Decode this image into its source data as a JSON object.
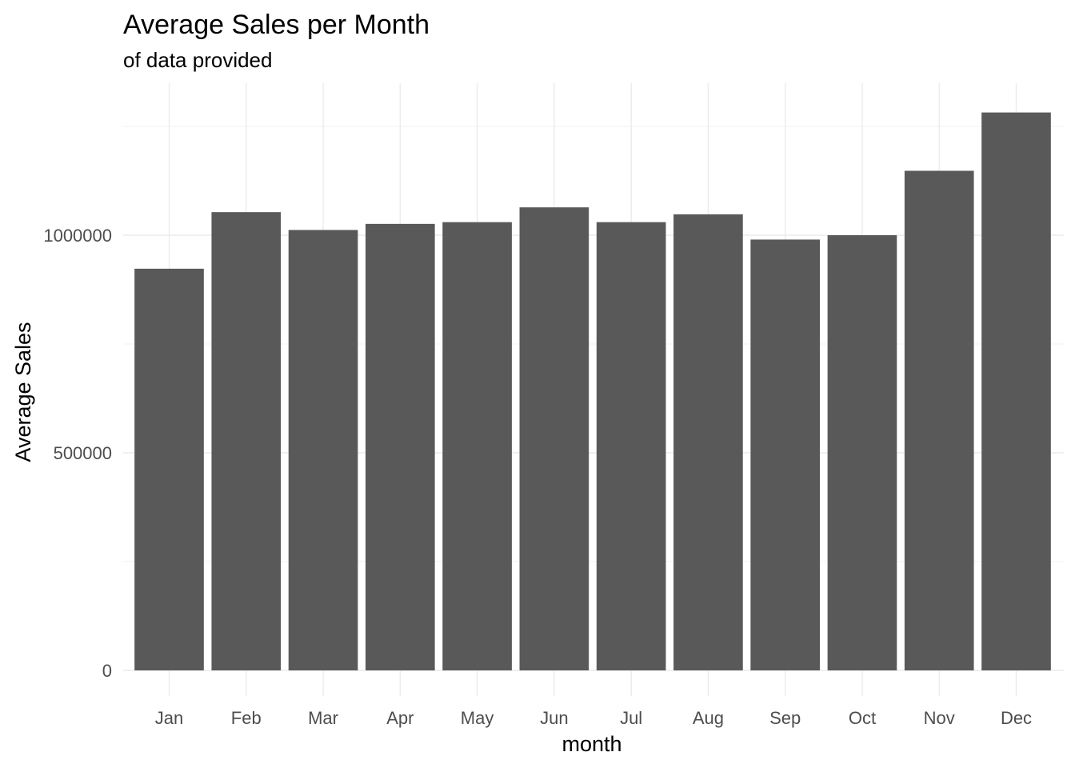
{
  "chart_data": {
    "type": "bar",
    "title": "Average Sales per Month",
    "subtitle": "of data provided",
    "xlabel": "month",
    "ylabel": "Average Sales",
    "categories": [
      "Jan",
      "Feb",
      "Mar",
      "Apr",
      "May",
      "Jun",
      "Jul",
      "Aug",
      "Sep",
      "Oct",
      "Nov",
      "Dec"
    ],
    "values": [
      923000,
      1053000,
      1012000,
      1026000,
      1030000,
      1064000,
      1030000,
      1048000,
      990000,
      1000000,
      1148000,
      1282000
    ],
    "ylim": [
      0,
      1300000
    ],
    "yticks": [
      0,
      500000,
      1000000
    ],
    "ytick_labels": [
      "0",
      "500000",
      "1000000"
    ],
    "grid": true,
    "legend": "none",
    "colors": {
      "bar": "#595959",
      "grid_major": "#ebebeb",
      "grid_minor": "#f2f2f2",
      "tick_text": "#4d4d4d",
      "text": "#000000"
    }
  }
}
